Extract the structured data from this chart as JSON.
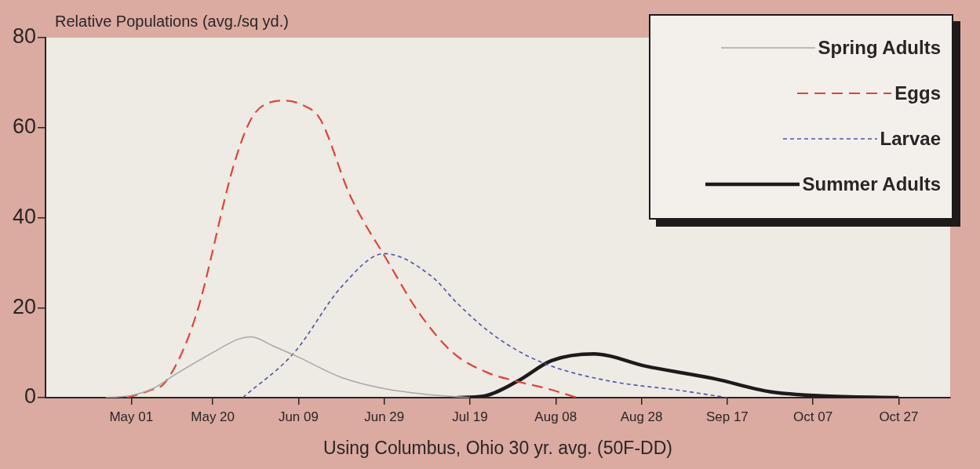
{
  "chart_data": {
    "type": "line",
    "ylabel": "Relative Populations (avg./sq yd.)",
    "xlabel": "Using Columbus, Ohio 30 yr. avg. (50F-DD)",
    "xlim": [
      "--04-11",
      "--11-08"
    ],
    "ylim": [
      0,
      80
    ],
    "yticks": [
      0,
      20,
      40,
      60,
      80
    ],
    "xticks": [
      {
        "value": "--05-01",
        "label": "May 01"
      },
      {
        "value": "--05-20",
        "label": "May 20"
      },
      {
        "value": "--06-09",
        "label": "Jun 09"
      },
      {
        "value": "--06-29",
        "label": "Jun 29"
      },
      {
        "value": "--07-19",
        "label": "Jul 19"
      },
      {
        "value": "--08-08",
        "label": "Aug 08"
      },
      {
        "value": "--08-28",
        "label": "Aug 28"
      },
      {
        "value": "--09-17",
        "label": "Sep 17"
      },
      {
        "value": "--10-07",
        "label": "Oct 07"
      },
      {
        "value": "--10-27",
        "label": "Oct 27"
      }
    ],
    "grid": false,
    "legend": "top right",
    "marker": "none",
    "series": [
      {
        "name": "Spring Adults",
        "color": "#a8a8a4",
        "line_style": "solid",
        "x": [
          "--04-25",
          "--05-01",
          "--05-06",
          "--05-11",
          "--05-20",
          "--05-26",
          "--05-29",
          "--06-03",
          "--06-09",
          "--06-19",
          "--06-29",
          "--07-09",
          "--07-19"
        ],
        "values": [
          0,
          0.5,
          2,
          5,
          10,
          13,
          13.5,
          11.5,
          9,
          4.5,
          2,
          0.7,
          0
        ]
      },
      {
        "name": "Eggs",
        "color": "#e0443a",
        "line_style": "dashed",
        "x": [
          "--04-30",
          "--05-05",
          "--05-09",
          "--05-16",
          "--05-25",
          "--05-29",
          "--06-02",
          "--06-06",
          "--06-10",
          "--06-14",
          "--06-21",
          "--06-30",
          "--07-07",
          "--07-15",
          "--07-23",
          "--07-30",
          "--08-06",
          "--08-13"
        ],
        "values": [
          0,
          1.5,
          3.5,
          18,
          52,
          62,
          65.5,
          66,
          65,
          62,
          45,
          30,
          19,
          10,
          5.6,
          3.6,
          2,
          0
        ]
      },
      {
        "name": "Larvae",
        "color": "#4a55a8",
        "line_style": "dotted",
        "x": [
          "--05-27",
          "--06-08",
          "--06-19",
          "--06-29",
          "--07-10",
          "--07-16",
          "--07-23",
          "--07-30",
          "--08-07",
          "--08-21",
          "--09-06",
          "--09-17"
        ],
        "values": [
          0,
          10,
          24.6,
          32,
          27,
          21,
          15,
          10.5,
          7,
          3.6,
          1.6,
          0
        ]
      },
      {
        "name": "Summer Adults",
        "color": "#1e1a1a",
        "line_style": "solid",
        "x": [
          "--07-16",
          "--07-22",
          "--07-30",
          "--08-07",
          "--08-17",
          "--08-29",
          "--09-14",
          "--09-27",
          "--10-09",
          "--10-27"
        ],
        "values": [
          0,
          0.3,
          3.6,
          8.2,
          9.7,
          7,
          4.2,
          1.3,
          0.4,
          0
        ]
      }
    ]
  }
}
